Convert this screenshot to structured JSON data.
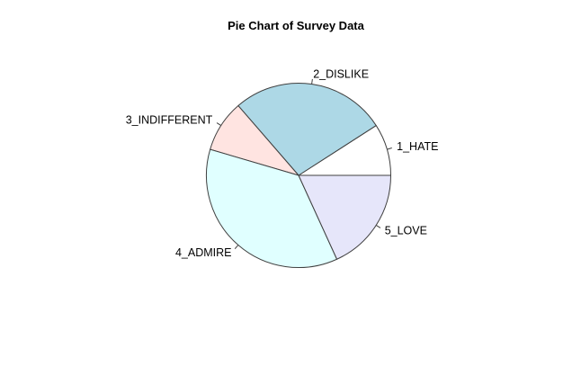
{
  "window": {
    "background": "#FFFFFF"
  },
  "chart_data": {
    "type": "pie",
    "title": "Pie Chart of Survey Data",
    "slices": [
      {
        "label": "1_HATE",
        "percent": 9.1,
        "angle_deg": 32.7,
        "color": "#FFFFFF"
      },
      {
        "label": "2_DISLIKE",
        "percent": 27.3,
        "angle_deg": 98.2,
        "color": "#ADD8E6"
      },
      {
        "label": "3_INDIFFERENT",
        "percent": 9.1,
        "angle_deg": 32.7,
        "color": "#FFE4E1"
      },
      {
        "label": "4_ADMIRE",
        "percent": 36.4,
        "angle_deg": 130.9,
        "color": "#E0FFFF"
      },
      {
        "label": "5_LOVE",
        "percent": 18.2,
        "angle_deg": 65.5,
        "color": "#E6E6FA"
      }
    ],
    "start_angle_deg": 0,
    "direction": "counterclockwise",
    "stroke_color": "#404040",
    "label_color": "#000000",
    "legend": "none",
    "label_style": "radial-callout-ticks"
  }
}
